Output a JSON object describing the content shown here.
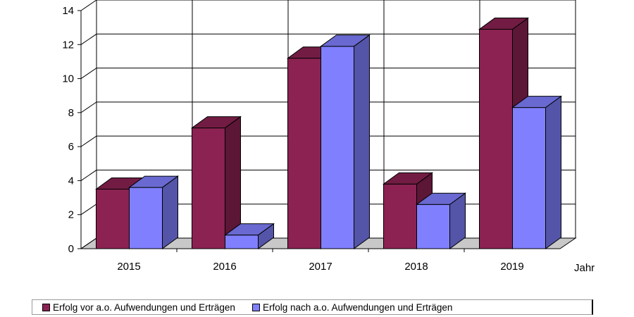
{
  "chart_data": {
    "type": "bar",
    "style": "3d-clustered-column",
    "categories": [
      "2015",
      "2016",
      "2017",
      "2018",
      "2019"
    ],
    "series": [
      {
        "name": "Erfolg vor a.o. Aufwendungen und Erträgen",
        "values": [
          3.5,
          7.1,
          11.2,
          3.8,
          12.9
        ],
        "color": "#8b2252"
      },
      {
        "name": "Erfolg nach a.o. Aufwendungen und Erträgen",
        "values": [
          3.6,
          0.8,
          11.9,
          2.6,
          8.3
        ],
        "color": "#8080ff"
      }
    ],
    "title": "",
    "xlabel": "Jahr",
    "ylabel": "",
    "ylim": [
      0,
      14
    ],
    "yticks": [
      "0",
      "2",
      "4",
      "6",
      "8",
      "10",
      "12",
      "14"
    ],
    "grid": true,
    "legend_position": "bottom"
  }
}
